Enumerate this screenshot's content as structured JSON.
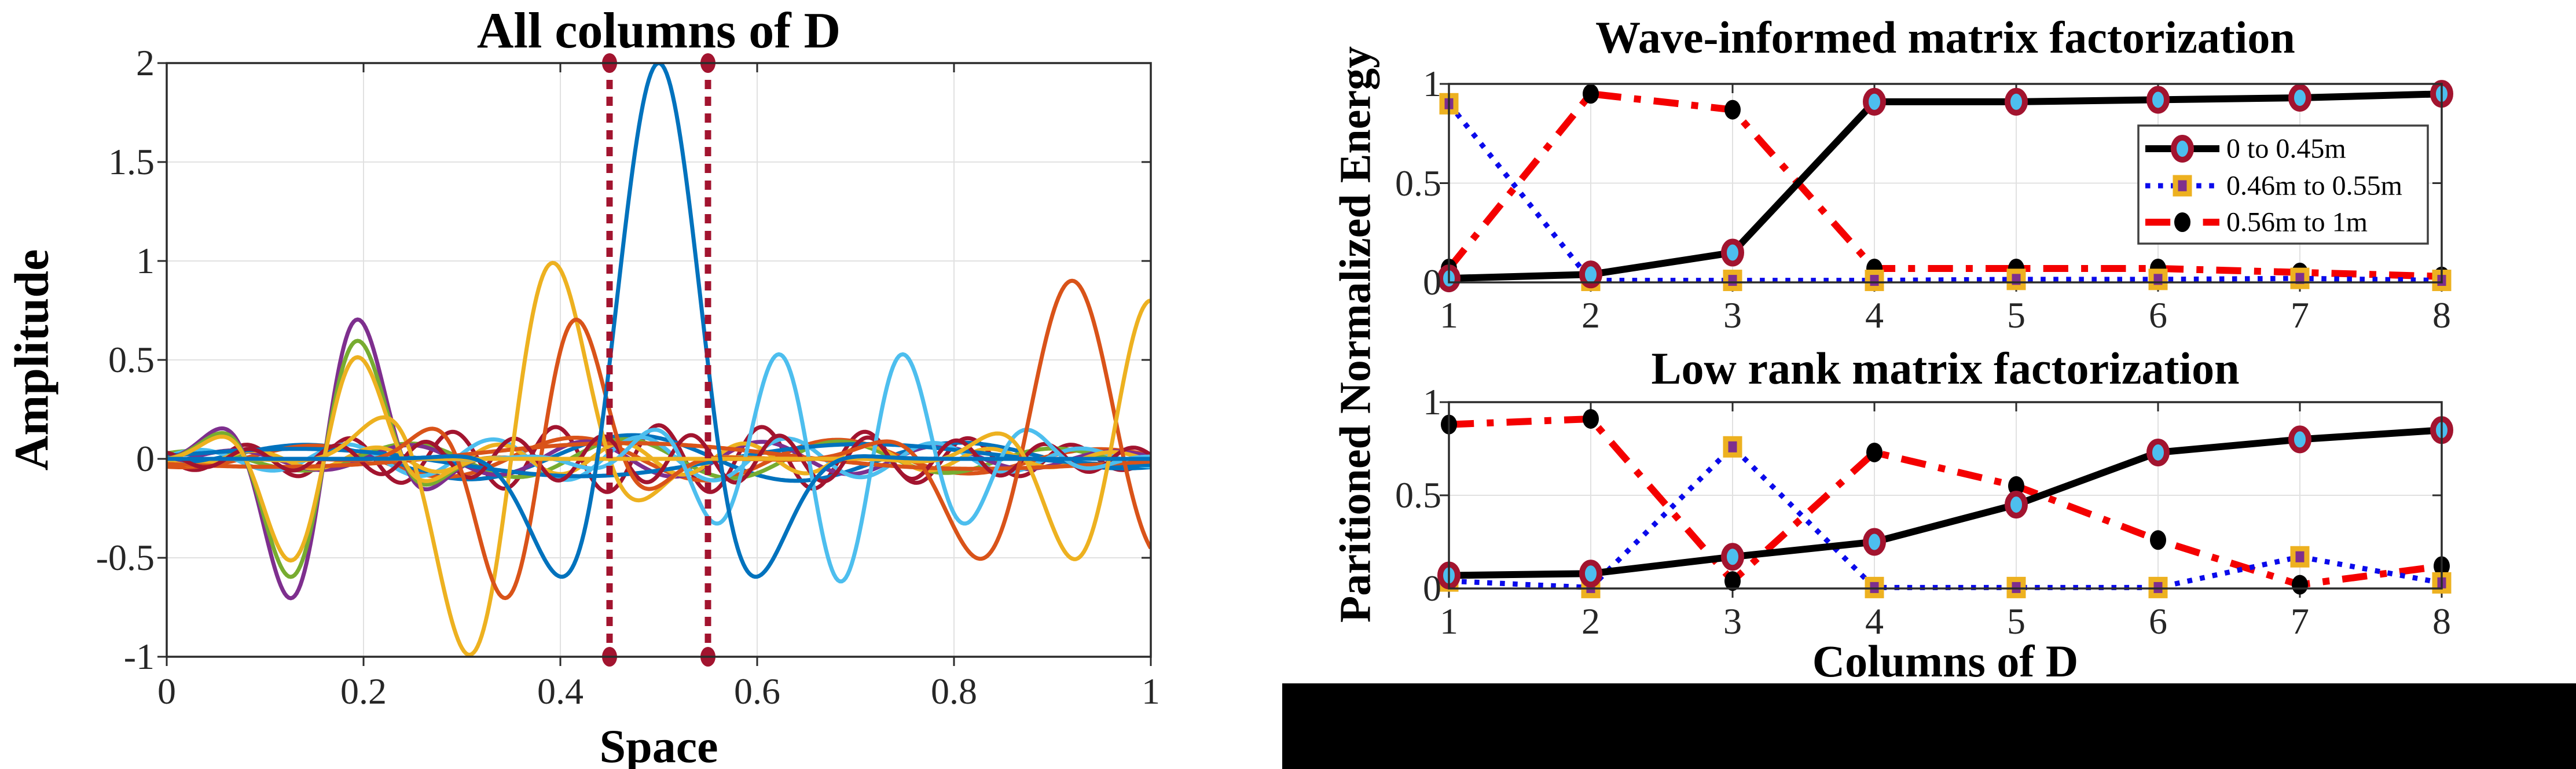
{
  "page": {
    "background": "#ffffff"
  },
  "palette": {
    "matlab_blue": "#0072BD",
    "matlab_orange": "#D95319",
    "matlab_yellow": "#EDB120",
    "matlab_purple": "#7E2F8E",
    "matlab_green": "#77AC30",
    "matlab_cyan": "#4DBEEE",
    "matlab_dark_red": "#A2142F",
    "series_black": "#000000",
    "series_blue": "#0A0AEB",
    "series_red": "#F40000",
    "marker_fill_cyan": "#4DBEEE",
    "marker_edge_maroon": "#A2142F",
    "marker_fill_purple": "#7E2F8E",
    "marker_edge_gold": "#EDB120",
    "axis": "#2B2B2B",
    "grid": "#E1E1E1",
    "tick_text": "#262626",
    "black_panel": "#000000"
  },
  "shared_labels": {
    "right_ylabel": "Paritioned Normalized Energy",
    "right_xlabel": "Columns of D"
  },
  "black_panel": {
    "present": true
  },
  "chart_data": [
    {
      "id": "all-columns-of-d",
      "type": "line",
      "title": "All columns of D",
      "xlabel": "Space",
      "ylabel": "Amplitude",
      "xlim": [
        0,
        1
      ],
      "ylim": [
        -1,
        2
      ],
      "xtick_values": [
        0,
        0.2,
        0.4,
        0.6,
        0.8,
        1
      ],
      "xtick_labels": [
        "0",
        "0.2",
        "0.4",
        "0.6",
        "0.8",
        "1"
      ],
      "ytick_values": [
        -1,
        -0.5,
        0,
        0.5,
        1,
        1.5,
        2
      ],
      "ytick_labels": [
        "-1",
        "-0.5",
        "0",
        "0.5",
        "1",
        "1.5",
        "2"
      ],
      "grid": true,
      "curve_model": "y = A*exp(-((x-c)/s)^2)*cos(2*PI*(x-c)/T + phi)",
      "curves": [
        {
          "color": "#A2142F",
          "A": 0.17,
          "c": 0.5,
          "s": 0.45,
          "T": 0.105,
          "phi": 0
        },
        {
          "color": "#0072BD",
          "A": 0.12,
          "c": 0.5,
          "s": 0.5,
          "T": 0.34,
          "phi": 0.5
        },
        {
          "color": "#D95319",
          "A": 0.11,
          "c": 0.5,
          "s": 0.5,
          "T": 0.27,
          "phi": 2.0
        },
        {
          "color": "#77AC30",
          "A": 0.1,
          "c": 0.5,
          "s": 0.5,
          "T": 0.22,
          "phi": 1.0
        },
        {
          "color": "#7E2F8E",
          "A": 0.09,
          "c": 0.5,
          "s": 0.5,
          "T": 0.18,
          "phi": 2.6
        },
        {
          "color": "#4DBEEE",
          "A": 0.11,
          "c": 0.5,
          "s": 0.5,
          "T": 0.15,
          "phi": 0.8
        },
        {
          "color": "#EDB120",
          "A": 0.08,
          "c": 0.5,
          "s": 0.5,
          "T": 0.125,
          "phi": 1.9
        },
        {
          "color": "#0072BD",
          "A": 0.09,
          "c": 0.5,
          "s": 0.5,
          "T": 0.62,
          "phi": 4.0
        },
        {
          "color": "#D95319",
          "A": 0.08,
          "c": 0.5,
          "s": 0.5,
          "T": 0.8,
          "phi": 0.3
        },
        {
          "color": "#A2142F",
          "A": 0.12,
          "c": 0.55,
          "s": 0.5,
          "T": 0.09,
          "phi": 1.2
        },
        {
          "color": "#7E2F8E",
          "A": 0.85,
          "c": 0.16,
          "s": 0.085,
          "T": 0.16,
          "phi": -1.5708
        },
        {
          "color": "#77AC30",
          "A": 0.72,
          "c": 0.16,
          "s": 0.085,
          "T": 0.16,
          "phi": -1.5708
        },
        {
          "color": "#EDB120",
          "A": 0.62,
          "c": 0.16,
          "s": 0.085,
          "T": 0.16,
          "phi": -1.5708
        },
        {
          "color": "#EDB120",
          "A": 1.2,
          "c": 0.35,
          "s": 0.105,
          "T": 0.2,
          "phi": -1.5708
        },
        {
          "color": "#D95319",
          "A": 0.85,
          "c": 0.38,
          "s": 0.09,
          "T": 0.17,
          "phi": -1.5708
        },
        {
          "color": "#4DBEEE",
          "A": 0.62,
          "c": 0.685,
          "s": 0.16,
          "T": 0.13,
          "phi": 3.1416
        },
        {
          "color": "#D95319",
          "A": 0.9,
          "c": 0.92,
          "s": 0.13,
          "T": 0.21,
          "phi": 0
        },
        {
          "color": "#EDB120",
          "A": 0.8,
          "c": 1.0,
          "s": 0.12,
          "T": 0.17,
          "phi": 0
        },
        {
          "color": "#0072BD",
          "A": 2.0,
          "c": 0.5,
          "s": 0.1,
          "T": 0.25,
          "phi": 0
        }
      ],
      "vlines": {
        "x": [
          0.45,
          0.55
        ],
        "color": "#A2142F",
        "style": "dashed",
        "marker": "dot-darkred",
        "marker_at_y": [
          -1,
          2
        ]
      }
    },
    {
      "id": "wave-informed",
      "type": "line",
      "title": "Wave-informed matrix factorization",
      "xlim": [
        1,
        8
      ],
      "ylim": [
        0,
        1
      ],
      "x": [
        1,
        2,
        3,
        4,
        5,
        6,
        7,
        8
      ],
      "xtick_values": [
        1,
        2,
        3,
        4,
        5,
        6,
        7,
        8
      ],
      "xtick_labels": [
        "1",
        "2",
        "3",
        "4",
        "5",
        "6",
        "7",
        "8"
      ],
      "ytick_values": [
        0,
        0.5,
        1
      ],
      "ytick_labels": [
        "0",
        "0.5",
        "1"
      ],
      "grid": true,
      "legend_visible": true,
      "series": [
        {
          "name": "0 to 0.45m",
          "color": "#000000",
          "style": "solid",
          "marker": "circle-maroon-cyan",
          "values": [
            0.02,
            0.04,
            0.15,
            0.91,
            0.91,
            0.92,
            0.93,
            0.95
          ]
        },
        {
          "name": "0.46m to 0.55m",
          "color": "#0A0AEB",
          "style": "dotted",
          "marker": "square-gold-purple",
          "values": [
            0.9,
            0.01,
            0.01,
            0.01,
            0.015,
            0.015,
            0.02,
            0.01
          ]
        },
        {
          "name": "0.56m to 1m",
          "color": "#F40000",
          "style": "dashdot",
          "marker": "dot-black",
          "values": [
            0.07,
            0.95,
            0.87,
            0.07,
            0.07,
            0.07,
            0.05,
            0.03
          ]
        }
      ]
    },
    {
      "id": "low-rank",
      "type": "line",
      "title": "Low rank matrix factorization",
      "xlim": [
        1,
        8
      ],
      "ylim": [
        0,
        1
      ],
      "x": [
        1,
        2,
        3,
        4,
        5,
        6,
        7,
        8
      ],
      "xtick_values": [
        1,
        2,
        3,
        4,
        5,
        6,
        7,
        8
      ],
      "xtick_labels": [
        "1",
        "2",
        "3",
        "4",
        "5",
        "6",
        "7",
        "8"
      ],
      "ytick_values": [
        0,
        0.5,
        1
      ],
      "ytick_labels": [
        "0",
        "0.5",
        "1"
      ],
      "grid": true,
      "legend_visible": false,
      "series": [
        {
          "name": "0 to 0.45m",
          "color": "#000000",
          "style": "solid",
          "marker": "circle-maroon-cyan",
          "values": [
            0.07,
            0.08,
            0.17,
            0.25,
            0.45,
            0.73,
            0.8,
            0.85
          ]
        },
        {
          "name": "0.46m to 0.55m",
          "color": "#0A0AEB",
          "style": "dotted",
          "marker": "square-gold-purple",
          "values": [
            0.04,
            0.005,
            0.76,
            0.005,
            0.005,
            0.005,
            0.17,
            0.03
          ]
        },
        {
          "name": "0.56m to 1m",
          "color": "#F40000",
          "style": "dashdot",
          "marker": "dot-black",
          "values": [
            0.88,
            0.91,
            0.04,
            0.73,
            0.55,
            0.26,
            0.02,
            0.12
          ]
        }
      ]
    }
  ]
}
